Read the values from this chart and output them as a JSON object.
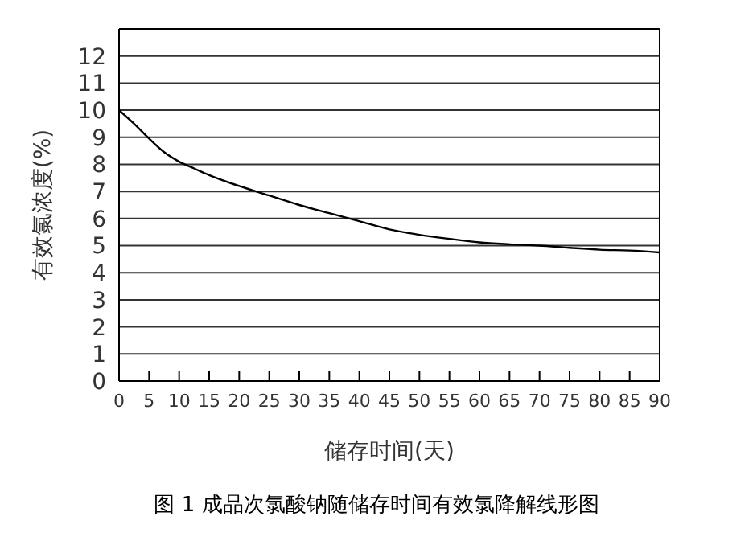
{
  "chart_data": {
    "type": "line",
    "xlabel": "储存时间(天)",
    "ylabel": "有效氯浓度(%)",
    "annotations": [
      "图 1 成品次氯酸钠随储存时间有效氯降解线形图"
    ],
    "x": [
      0,
      2.5,
      5,
      7.5,
      10,
      12.5,
      15,
      20,
      25,
      30,
      35,
      40,
      45,
      50,
      55,
      60,
      65,
      70,
      75,
      80,
      85,
      90
    ],
    "series": [
      {
        "color": "#000000",
        "values": [
          10,
          9.5,
          8.95,
          8.45,
          8.1,
          7.85,
          7.6,
          7.2,
          6.85,
          6.5,
          6.2,
          5.9,
          5.6,
          5.4,
          5.25,
          5.12,
          5.05,
          5.0,
          4.92,
          4.85,
          4.82,
          4.75
        ]
      }
    ],
    "xlim": [
      0,
      90
    ],
    "xticks": [
      0,
      5,
      10,
      15,
      20,
      25,
      30,
      35,
      40,
      45,
      50,
      55,
      60,
      65,
      70,
      75,
      80,
      85,
      90
    ],
    "ylim": [
      0,
      13
    ],
    "yticks": [
      0,
      1,
      2,
      3,
      4,
      5,
      6,
      7,
      8,
      9,
      10,
      11,
      12
    ],
    "grid": "y",
    "marker": "none",
    "line_style": "solid"
  }
}
